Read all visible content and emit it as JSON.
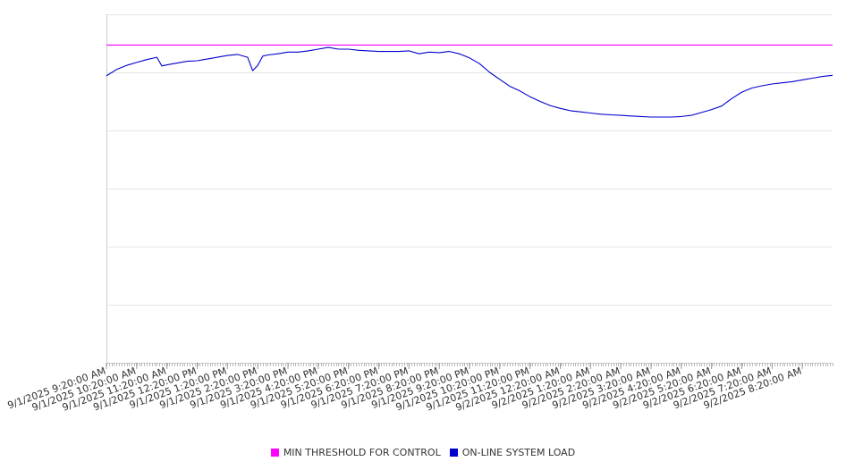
{
  "chart_data": {
    "type": "line",
    "title": "",
    "xlabel": "",
    "ylabel": "",
    "grid": true,
    "legend_position": "bottom-center",
    "x_ticks": [
      "9/1/2025 9:20:00 AM",
      "9/1/2025 10:20:00 AM",
      "9/1/2025 11:20:00 AM",
      "9/1/2025 12:20:00 PM",
      "9/1/2025 1:20:00 PM",
      "9/1/2025 2:20:00 PM",
      "9/1/2025 3:20:00 PM",
      "9/1/2025 4:20:00 PM",
      "9/1/2025 5:20:00 PM",
      "9/1/2025 6:20:00 PM",
      "9/1/2025 7:20:00 PM",
      "9/1/2025 8:20:00 PM",
      "9/1/2025 9:20:00 PM",
      "9/1/2025 10:20:00 PM",
      "9/1/2025 11:20:00 PM",
      "9/2/2025 12:20:00 AM",
      "9/2/2025 1:20:00 AM",
      "9/2/2025 2:20:00 AM",
      "9/2/2025 3:20:00 AM",
      "9/2/2025 4:20:00 AM",
      "9/2/2025 5:20:00 AM",
      "9/2/2025 6:20:00 AM",
      "9/2/2025 7:20:00 AM",
      "9/2/2025 8:20:00 AM"
    ],
    "x_range": [
      "9/1/2025 9:20:00 AM",
      "9/2/2025 9:20:00 AM"
    ],
    "y_range": [
      0,
      6
    ],
    "y_gridlines": 6,
    "series": [
      {
        "name": "MIN THRESHOLD FOR CONTROL",
        "color": "#ff00ff",
        "x": [
          "9/1/2025 9:20:00 AM",
          "9/2/2025 9:20:00 AM"
        ],
        "values": [
          5.47,
          5.47
        ]
      },
      {
        "name": "ON-LINE SYSTEM LOAD",
        "color": "#0000cc",
        "x": [
          "9/1/2025 9:20:00 AM",
          "9/1/2025 9:40:00 AM",
          "9/1/2025 10:00:00 AM",
          "9/1/2025 10:20:00 AM",
          "9/1/2025 10:40:00 AM",
          "9/1/2025 11:00:00 AM",
          "9/1/2025 11:10:00 AM",
          "9/1/2025 11:20:00 AM",
          "9/1/2025 11:40:00 AM",
          "9/1/2025 12:00:00 PM",
          "9/1/2025 12:20:00 PM",
          "9/1/2025 12:40:00 PM",
          "9/1/2025 1:00:00 PM",
          "9/1/2025 1:20:00 PM",
          "9/1/2025 1:40:00 PM",
          "9/1/2025 2:00:00 PM",
          "9/1/2025 2:10:00 PM",
          "9/1/2025 2:20:00 PM",
          "9/1/2025 2:30:00 PM",
          "9/1/2025 2:40:00 PM",
          "9/1/2025 3:00:00 PM",
          "9/1/2025 3:20:00 PM",
          "9/1/2025 3:40:00 PM",
          "9/1/2025 4:00:00 PM",
          "9/1/2025 4:20:00 PM",
          "9/1/2025 4:40:00 PM",
          "9/1/2025 5:00:00 PM",
          "9/1/2025 5:20:00 PM",
          "9/1/2025 5:40:00 PM",
          "9/1/2025 6:00:00 PM",
          "9/1/2025 6:20:00 PM",
          "9/1/2025 6:40:00 PM",
          "9/1/2025 7:00:00 PM",
          "9/1/2025 7:20:00 PM",
          "9/1/2025 7:40:00 PM",
          "9/1/2025 8:00:00 PM",
          "9/1/2025 8:20:00 PM",
          "9/1/2025 8:40:00 PM",
          "9/1/2025 9:00:00 PM",
          "9/1/2025 9:20:00 PM",
          "9/1/2025 9:40:00 PM",
          "9/1/2025 10:00:00 PM",
          "9/1/2025 10:20:00 PM",
          "9/1/2025 10:40:00 PM",
          "9/1/2025 11:00:00 PM",
          "9/1/2025 11:20:00 PM",
          "9/1/2025 11:40:00 PM",
          "9/2/2025 12:00:00 AM",
          "9/2/2025 12:20:00 AM",
          "9/2/2025 12:40:00 AM",
          "9/2/2025 1:00:00 AM",
          "9/2/2025 1:20:00 AM",
          "9/2/2025 1:40:00 AM",
          "9/2/2025 2:00:00 AM",
          "9/2/2025 2:20:00 AM",
          "9/2/2025 2:40:00 AM",
          "9/2/2025 3:00:00 AM",
          "9/2/2025 3:20:00 AM",
          "9/2/2025 3:40:00 AM",
          "9/2/2025 4:00:00 AM",
          "9/2/2025 4:20:00 AM",
          "9/2/2025 4:40:00 AM",
          "9/2/2025 5:00:00 AM",
          "9/2/2025 5:20:00 AM",
          "9/2/2025 5:40:00 AM",
          "9/2/2025 6:00:00 AM",
          "9/2/2025 6:20:00 AM",
          "9/2/2025 6:40:00 AM",
          "9/2/2025 7:00:00 AM",
          "9/2/2025 7:20:00 AM",
          "9/2/2025 7:40:00 AM",
          "9/2/2025 8:00:00 AM",
          "9/2/2025 8:20:00 AM",
          "9/2/2025 8:40:00 AM",
          "9/2/2025 9:00:00 AM",
          "9/2/2025 9:20:00 AM"
        ],
        "values": [
          4.94,
          5.05,
          5.12,
          5.17,
          5.22,
          5.26,
          5.11,
          5.13,
          5.16,
          5.19,
          5.2,
          5.23,
          5.26,
          5.29,
          5.31,
          5.26,
          5.03,
          5.12,
          5.28,
          5.3,
          5.32,
          5.35,
          5.35,
          5.37,
          5.4,
          5.43,
          5.4,
          5.4,
          5.38,
          5.37,
          5.36,
          5.36,
          5.36,
          5.37,
          5.32,
          5.35,
          5.34,
          5.36,
          5.32,
          5.25,
          5.15,
          5.0,
          4.88,
          4.76,
          4.68,
          4.58,
          4.5,
          4.43,
          4.38,
          4.34,
          4.32,
          4.3,
          4.28,
          4.27,
          4.26,
          4.25,
          4.24,
          4.23,
          4.23,
          4.23,
          4.24,
          4.26,
          4.31,
          4.36,
          4.42,
          4.55,
          4.66,
          4.73,
          4.77,
          4.8,
          4.82,
          4.84,
          4.87,
          4.9,
          4.93,
          4.95
        ]
      }
    ]
  }
}
